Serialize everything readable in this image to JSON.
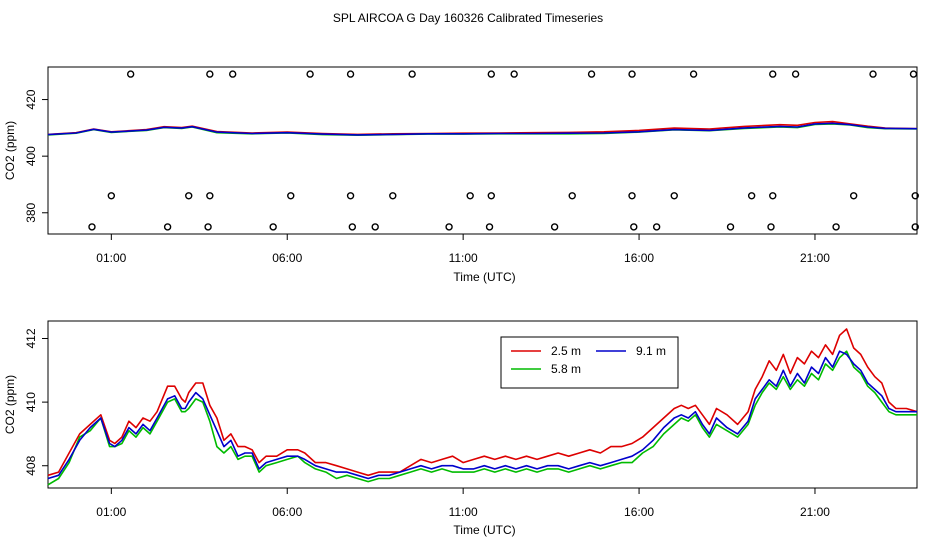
{
  "title": "SPL AIRCOA G  Day 160326  Calibrated Timeseries",
  "colors": {
    "red": "#dd0000",
    "green": "#00bb00",
    "blue": "#0000cc",
    "axis": "#000000"
  },
  "chart_data": [
    {
      "type": "line",
      "name": "top-panel",
      "xlabel": "Time (UTC)",
      "ylabel": "CO2 (ppm)",
      "xlim": [
        -0.8,
        23.9
      ],
      "ylim": [
        372.5,
        431.5
      ],
      "xticks": [
        1,
        6,
        11,
        16,
        21
      ],
      "xtick_labels": [
        "01:00",
        "06:00",
        "11:00",
        "16:00",
        "21:00"
      ],
      "yticks": [
        380,
        400,
        420
      ],
      "ytick_labels": [
        "380",
        "400",
        "420"
      ],
      "marker_rows": [
        {
          "y": 429,
          "x": [
            1.55,
            3.8,
            4.45,
            6.65,
            7.8,
            9.55,
            11.8,
            12.45,
            14.65,
            15.8,
            17.55,
            19.8,
            20.45,
            22.65,
            23.8
          ]
        },
        {
          "y": 386,
          "x": [
            1.0,
            3.2,
            3.8,
            6.1,
            7.8,
            9.0,
            11.2,
            11.8,
            14.1,
            15.8,
            17.0,
            19.2,
            19.8,
            22.1,
            23.85
          ]
        },
        {
          "y": 375,
          "x": [
            0.45,
            2.6,
            3.75,
            5.6,
            7.85,
            8.5,
            10.6,
            11.75,
            13.6,
            15.85,
            16.5,
            18.6,
            19.75,
            21.6,
            23.85
          ]
        }
      ],
      "series": [
        {
          "name": "2.5 m",
          "color": "#dd0000",
          "x": [
            -0.8,
            0,
            0.5,
            1.0,
            2.0,
            2.5,
            3.0,
            3.3,
            4.0,
            5.0,
            6.0,
            7.0,
            8.0,
            9.0,
            10.0,
            11.0,
            12.0,
            13.0,
            14.0,
            15.0,
            16.0,
            17.0,
            18.0,
            19.0,
            20.0,
            20.5,
            21.0,
            21.5,
            22.0,
            22.5,
            23.0,
            23.9
          ],
          "y": [
            407.7,
            408.3,
            409.6,
            408.6,
            409.4,
            410.4,
            410.1,
            410.6,
            408.7,
            408.2,
            408.5,
            408.0,
            407.7,
            407.9,
            408.0,
            408.1,
            408.2,
            408.3,
            408.4,
            408.6,
            409.1,
            409.9,
            409.6,
            410.5,
            411.1,
            410.9,
            411.9,
            412.2,
            411.4,
            410.6,
            409.9,
            409.7
          ]
        },
        {
          "name": "5.8 m",
          "color": "#00bb00",
          "x": [
            -0.8,
            0,
            0.5,
            1.0,
            2.0,
            2.5,
            3.0,
            3.3,
            4.0,
            5.0,
            6.0,
            7.0,
            8.0,
            9.0,
            10.0,
            11.0,
            12.0,
            13.0,
            14.0,
            15.0,
            16.0,
            17.0,
            18.0,
            19.0,
            20.0,
            20.5,
            21.0,
            21.5,
            22.0,
            22.5,
            23.0,
            23.9
          ],
          "y": [
            407.5,
            408.1,
            409.4,
            408.4,
            409.1,
            410.1,
            409.8,
            410.3,
            408.3,
            407.9,
            408.2,
            407.6,
            407.4,
            407.6,
            407.8,
            407.8,
            407.9,
            407.9,
            407.9,
            408.0,
            408.5,
            409.3,
            409.0,
            409.8,
            410.3,
            410.1,
            411.2,
            411.4,
            411.0,
            410.1,
            409.7,
            409.6
          ]
        },
        {
          "name": "9.1 m",
          "color": "#0000cc",
          "x": [
            -0.8,
            0,
            0.5,
            1.0,
            2.0,
            2.5,
            3.0,
            3.3,
            4.0,
            5.0,
            6.0,
            7.0,
            8.0,
            9.0,
            10.0,
            11.0,
            12.0,
            13.0,
            14.0,
            15.0,
            16.0,
            17.0,
            18.0,
            19.0,
            20.0,
            20.5,
            21.0,
            21.5,
            22.0,
            22.5,
            23.0,
            23.9
          ],
          "y": [
            407.6,
            408.2,
            409.5,
            408.5,
            409.2,
            410.2,
            409.9,
            410.4,
            408.5,
            408.0,
            408.3,
            407.8,
            407.5,
            407.7,
            407.9,
            407.9,
            408.0,
            408.0,
            408.1,
            408.2,
            408.6,
            409.4,
            409.1,
            410.0,
            410.5,
            410.3,
            411.4,
            411.6,
            411.1,
            410.3,
            409.8,
            409.7
          ]
        }
      ]
    },
    {
      "type": "line",
      "name": "bottom-panel",
      "xlabel": "Time (UTC)",
      "ylabel": "CO2 (ppm)",
      "xlim": [
        -0.8,
        23.9
      ],
      "ylim": [
        407.3,
        412.55
      ],
      "xticks": [
        1,
        6,
        11,
        16,
        21
      ],
      "xtick_labels": [
        "01:00",
        "06:00",
        "11:00",
        "16:00",
        "21:00"
      ],
      "yticks": [
        408,
        410,
        412
      ],
      "ytick_labels": [
        "408",
        "410",
        "412"
      ],
      "legend": {
        "position": "top-right",
        "entries": [
          "2.5 m",
          "9.1 m",
          "5.8 m"
        ]
      },
      "series": [
        {
          "name": "2.5 m",
          "color": "#dd0000",
          "x": [
            -0.8,
            -0.5,
            -0.2,
            0.1,
            0.4,
            0.7,
            0.95,
            1.1,
            1.3,
            1.5,
            1.7,
            1.9,
            2.1,
            2.3,
            2.6,
            2.8,
            3.0,
            3.1,
            3.2,
            3.4,
            3.6,
            3.8,
            4.0,
            4.2,
            4.4,
            4.6,
            4.8,
            5.0,
            5.2,
            5.4,
            5.7,
            6.0,
            6.3,
            6.5,
            6.8,
            7.1,
            7.4,
            7.7,
            8.0,
            8.3,
            8.6,
            8.9,
            9.2,
            9.5,
            9.8,
            10.1,
            10.4,
            10.7,
            11.0,
            11.3,
            11.6,
            11.9,
            12.2,
            12.5,
            12.8,
            13.1,
            13.4,
            13.7,
            14.0,
            14.3,
            14.6,
            14.9,
            15.2,
            15.5,
            15.8,
            16.1,
            16.4,
            16.7,
            17.0,
            17.2,
            17.4,
            17.6,
            17.8,
            18.0,
            18.2,
            18.5,
            18.8,
            19.1,
            19.3,
            19.5,
            19.7,
            19.9,
            20.1,
            20.3,
            20.5,
            20.7,
            20.9,
            21.1,
            21.3,
            21.5,
            21.7,
            21.9,
            22.1,
            22.3,
            22.5,
            22.7,
            22.9,
            23.1,
            23.3,
            23.6,
            23.9
          ],
          "y": [
            407.7,
            407.8,
            408.4,
            409.0,
            409.3,
            409.6,
            408.8,
            408.7,
            408.9,
            409.4,
            409.2,
            409.5,
            409.4,
            409.7,
            410.5,
            410.5,
            410.1,
            410.0,
            410.3,
            410.6,
            410.6,
            409.9,
            409.5,
            408.8,
            409.0,
            408.6,
            408.6,
            408.5,
            408.1,
            408.3,
            408.3,
            408.5,
            408.5,
            408.4,
            408.1,
            408.1,
            408.0,
            407.9,
            407.8,
            407.7,
            407.8,
            407.8,
            407.8,
            408.0,
            408.2,
            408.1,
            408.2,
            408.3,
            408.1,
            408.2,
            408.3,
            408.2,
            408.3,
            408.2,
            408.3,
            408.2,
            408.3,
            408.4,
            408.3,
            408.4,
            408.5,
            408.4,
            408.6,
            408.6,
            408.7,
            408.9,
            409.2,
            409.5,
            409.8,
            409.9,
            409.8,
            409.9,
            409.6,
            409.3,
            409.8,
            409.6,
            409.3,
            409.7,
            410.4,
            410.8,
            411.3,
            411.0,
            411.5,
            410.9,
            411.4,
            411.2,
            411.6,
            411.4,
            411.8,
            411.5,
            412.1,
            412.3,
            411.7,
            411.5,
            411.1,
            410.8,
            410.6,
            410.0,
            409.8,
            409.8,
            409.7
          ]
        },
        {
          "name": "5.8 m",
          "color": "#00bb00",
          "x": [
            -0.8,
            -0.5,
            -0.2,
            0.1,
            0.4,
            0.7,
            0.95,
            1.1,
            1.3,
            1.5,
            1.7,
            1.9,
            2.1,
            2.3,
            2.6,
            2.8,
            3.0,
            3.1,
            3.2,
            3.4,
            3.6,
            3.8,
            4.0,
            4.2,
            4.4,
            4.6,
            4.8,
            5.0,
            5.2,
            5.4,
            5.7,
            6.0,
            6.3,
            6.5,
            6.8,
            7.1,
            7.4,
            7.7,
            8.0,
            8.3,
            8.6,
            8.9,
            9.2,
            9.5,
            9.8,
            10.1,
            10.4,
            10.7,
            11.0,
            11.3,
            11.6,
            11.9,
            12.2,
            12.5,
            12.8,
            13.1,
            13.4,
            13.7,
            14.0,
            14.3,
            14.6,
            14.9,
            15.2,
            15.5,
            15.8,
            16.1,
            16.4,
            16.7,
            17.0,
            17.2,
            17.4,
            17.6,
            17.8,
            18.0,
            18.2,
            18.5,
            18.8,
            19.1,
            19.3,
            19.5,
            19.7,
            19.9,
            20.1,
            20.3,
            20.5,
            20.7,
            20.9,
            21.1,
            21.3,
            21.5,
            21.7,
            21.9,
            22.1,
            22.3,
            22.5,
            22.7,
            22.9,
            23.1,
            23.3,
            23.6,
            23.9
          ],
          "y": [
            407.4,
            407.6,
            408.1,
            408.9,
            409.1,
            409.5,
            408.6,
            408.6,
            408.7,
            409.1,
            408.9,
            409.2,
            409.0,
            409.4,
            410.0,
            410.1,
            409.7,
            409.7,
            409.8,
            410.1,
            410.0,
            409.4,
            408.6,
            408.4,
            408.6,
            408.2,
            408.3,
            408.3,
            407.8,
            408.0,
            408.1,
            408.2,
            408.3,
            408.1,
            407.9,
            407.8,
            407.6,
            407.7,
            407.6,
            407.5,
            407.6,
            407.6,
            407.7,
            407.8,
            407.9,
            407.8,
            407.9,
            407.8,
            407.8,
            407.8,
            407.9,
            407.8,
            407.9,
            407.8,
            407.9,
            407.8,
            407.9,
            407.9,
            407.8,
            407.9,
            408.0,
            407.9,
            408.0,
            408.1,
            408.1,
            408.4,
            408.6,
            409.0,
            409.3,
            409.5,
            409.4,
            409.6,
            409.2,
            408.9,
            409.3,
            409.1,
            408.9,
            409.3,
            409.9,
            410.3,
            410.6,
            410.4,
            410.8,
            410.4,
            410.7,
            410.5,
            410.9,
            410.7,
            411.2,
            411.0,
            411.4,
            411.6,
            411.1,
            410.9,
            410.5,
            410.3,
            410.0,
            409.7,
            409.6,
            409.6,
            409.6
          ]
        },
        {
          "name": "9.1 m",
          "color": "#0000cc",
          "x": [
            -0.8,
            -0.5,
            -0.2,
            0.1,
            0.4,
            0.7,
            0.95,
            1.1,
            1.3,
            1.5,
            1.7,
            1.9,
            2.1,
            2.3,
            2.6,
            2.8,
            3.0,
            3.1,
            3.2,
            3.4,
            3.6,
            3.8,
            4.0,
            4.2,
            4.4,
            4.6,
            4.8,
            5.0,
            5.2,
            5.4,
            5.7,
            6.0,
            6.3,
            6.5,
            6.8,
            7.1,
            7.4,
            7.7,
            8.0,
            8.3,
            8.6,
            8.9,
            9.2,
            9.5,
            9.8,
            10.1,
            10.4,
            10.7,
            11.0,
            11.3,
            11.6,
            11.9,
            12.2,
            12.5,
            12.8,
            13.1,
            13.4,
            13.7,
            14.0,
            14.3,
            14.6,
            14.9,
            15.2,
            15.5,
            15.8,
            16.1,
            16.4,
            16.7,
            17.0,
            17.2,
            17.4,
            17.6,
            17.8,
            18.0,
            18.2,
            18.5,
            18.8,
            19.1,
            19.3,
            19.5,
            19.7,
            19.9,
            20.1,
            20.3,
            20.5,
            20.7,
            20.9,
            21.1,
            21.3,
            21.5,
            21.7,
            21.9,
            22.1,
            22.3,
            22.5,
            22.7,
            22.9,
            23.1,
            23.3,
            23.6,
            23.9
          ],
          "y": [
            407.6,
            407.7,
            408.2,
            408.8,
            409.2,
            409.5,
            408.7,
            408.6,
            408.8,
            409.2,
            409.0,
            409.3,
            409.1,
            409.5,
            410.1,
            410.2,
            409.8,
            409.8,
            410.0,
            410.3,
            410.1,
            409.6,
            409.1,
            408.6,
            408.8,
            408.3,
            408.4,
            408.4,
            407.9,
            408.1,
            408.2,
            408.3,
            408.3,
            408.2,
            408.0,
            407.9,
            407.8,
            407.8,
            407.7,
            407.6,
            407.7,
            407.7,
            407.8,
            407.9,
            408.0,
            407.9,
            408.0,
            408.0,
            407.9,
            407.9,
            408.0,
            407.9,
            408.0,
            407.9,
            408.0,
            407.9,
            408.0,
            408.0,
            407.9,
            408.0,
            408.1,
            408.0,
            408.1,
            408.2,
            408.3,
            408.5,
            408.8,
            409.2,
            409.5,
            409.6,
            409.5,
            409.7,
            409.3,
            409.0,
            409.5,
            409.2,
            409.0,
            409.4,
            410.1,
            410.4,
            410.7,
            410.5,
            411.0,
            410.5,
            410.9,
            410.6,
            411.1,
            410.9,
            411.4,
            411.1,
            411.6,
            411.5,
            411.2,
            411.0,
            410.6,
            410.4,
            410.2,
            409.8,
            409.7,
            409.7,
            409.7
          ]
        }
      ]
    }
  ]
}
